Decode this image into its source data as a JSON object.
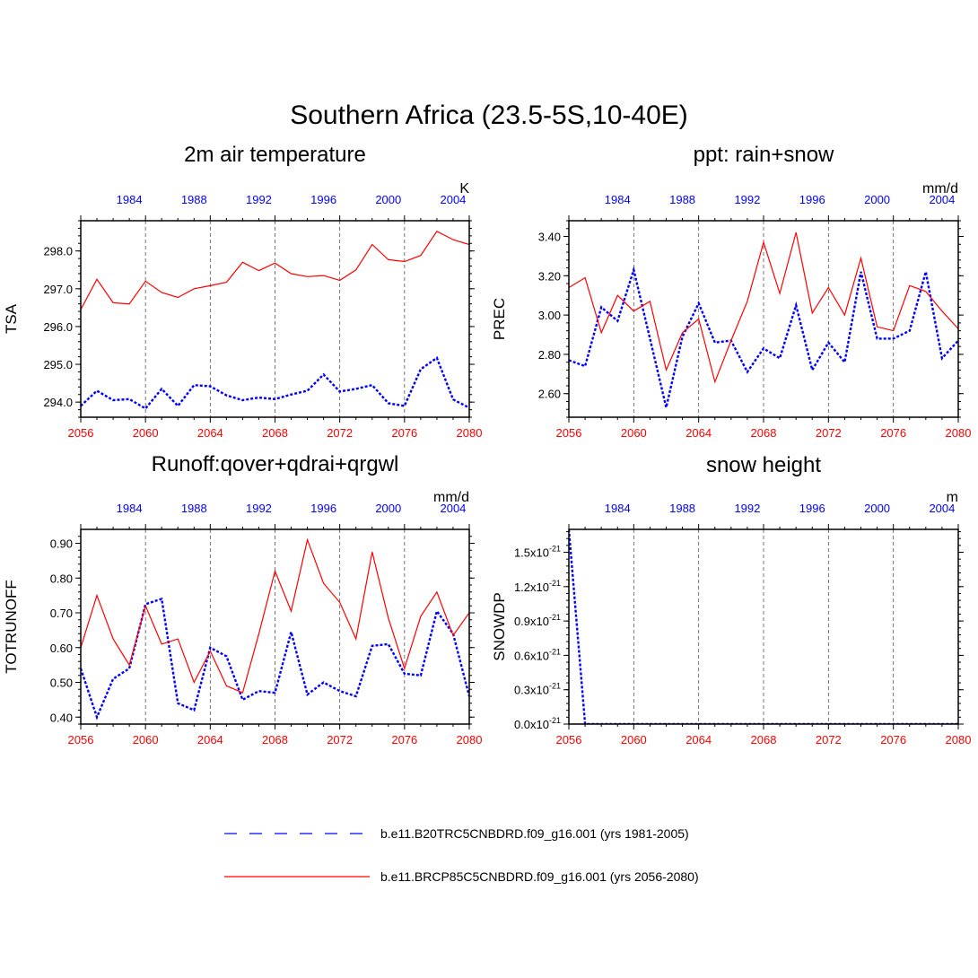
{
  "title": "Southern Africa (23.5-5S,10-40E)",
  "colors": {
    "future": "#ff0000",
    "historical": "#0000ff",
    "axis": "#000000",
    "grid": "#555555"
  },
  "legend": {
    "historical": "b.e11.B20TRC5CNBDRD.f09_g16.001 (yrs 1981-2005)",
    "future": "b.e11.BRCP85C5CNBDRD.f09_g16.001 (yrs 2056-2080)"
  },
  "chart_data": [
    {
      "type": "line",
      "title": "2m air temperature",
      "ylabel": "TSA",
      "units": "K",
      "x_future": [
        2056,
        2057,
        2058,
        2059,
        2060,
        2061,
        2062,
        2063,
        2064,
        2065,
        2066,
        2067,
        2068,
        2069,
        2070,
        2071,
        2072,
        2073,
        2074,
        2075,
        2076,
        2077,
        2078,
        2079,
        2080
      ],
      "x_historical": [
        1981,
        1982,
        1983,
        1984,
        1985,
        1986,
        1987,
        1988,
        1989,
        1990,
        1991,
        1992,
        1993,
        1994,
        1995,
        1996,
        1997,
        1998,
        1999,
        2000,
        2001,
        2002,
        2003,
        2004,
        2005
      ],
      "xlim": [
        2056,
        2080
      ],
      "ylim": [
        293.6,
        298.8
      ],
      "yticks": [
        294.0,
        295.0,
        296.0,
        297.0,
        298.0
      ],
      "ytick_labels": [
        "294.0",
        "295.0",
        "296.0",
        "297.0",
        "298.0"
      ],
      "bottom_ticks": [
        "2056",
        "2060",
        "2064",
        "2068",
        "2072",
        "2076",
        "2080"
      ],
      "top_ticks": [
        "1984",
        "1988",
        "1992",
        "1996",
        "2000",
        "2004"
      ],
      "series": [
        {
          "name": "b.e11.B20TRC5CNBDRD.f09_g16.001 (yrs 1981-2005)",
          "role": "historical",
          "values": [
            293.9,
            294.3,
            294.05,
            294.08,
            293.83,
            294.35,
            293.9,
            294.45,
            294.42,
            294.18,
            294.05,
            294.12,
            294.08,
            294.2,
            294.3,
            294.73,
            294.28,
            294.35,
            294.45,
            293.97,
            293.9,
            294.87,
            295.17,
            294.07,
            293.85
          ]
        },
        {
          "name": "b.e11.BRCP85C5CNBDRD.f09_g16.001 (yrs 2056-2080)",
          "role": "future",
          "values": [
            296.45,
            297.25,
            296.63,
            296.6,
            297.2,
            296.9,
            296.77,
            297.0,
            297.08,
            297.17,
            297.7,
            297.48,
            297.68,
            297.4,
            297.32,
            297.35,
            297.22,
            297.5,
            298.17,
            297.77,
            297.72,
            297.88,
            298.52,
            298.3,
            298.17
          ]
        }
      ]
    },
    {
      "type": "line",
      "title": "ppt: rain+snow",
      "ylabel": "PREC",
      "units": "mm/d",
      "x_future": [
        2056,
        2057,
        2058,
        2059,
        2060,
        2061,
        2062,
        2063,
        2064,
        2065,
        2066,
        2067,
        2068,
        2069,
        2070,
        2071,
        2072,
        2073,
        2074,
        2075,
        2076,
        2077,
        2078,
        2079,
        2080
      ],
      "x_historical": [
        1981,
        1982,
        1983,
        1984,
        1985,
        1986,
        1987,
        1988,
        1989,
        1990,
        1991,
        1992,
        1993,
        1994,
        1995,
        1996,
        1997,
        1998,
        1999,
        2000,
        2001,
        2002,
        2003,
        2004,
        2005
      ],
      "xlim": [
        2056,
        2080
      ],
      "ylim": [
        2.48,
        3.48
      ],
      "yticks": [
        2.6,
        2.8,
        3.0,
        3.2,
        3.4
      ],
      "ytick_labels": [
        "2.60",
        "2.80",
        "3.00",
        "3.20",
        "3.40"
      ],
      "bottom_ticks": [
        "2056",
        "2060",
        "2064",
        "2068",
        "2072",
        "2076",
        "2080"
      ],
      "top_ticks": [
        "1984",
        "1988",
        "1992",
        "1996",
        "2000",
        "2004"
      ],
      "series": [
        {
          "name": "b.e11.B20TRC5CNBDRD.f09_g16.001 (yrs 1981-2005)",
          "role": "historical",
          "values": [
            2.77,
            2.74,
            3.04,
            2.97,
            3.23,
            2.88,
            2.53,
            2.89,
            3.06,
            2.86,
            2.87,
            2.71,
            2.83,
            2.78,
            3.05,
            2.72,
            2.86,
            2.76,
            3.22,
            2.88,
            2.88,
            2.92,
            3.22,
            2.78,
            2.87
          ]
        },
        {
          "name": "b.e11.BRCP85C5CNBDRD.f09_g16.001 (yrs 2056-2080)",
          "role": "future",
          "values": [
            3.14,
            3.19,
            2.91,
            3.1,
            3.02,
            3.07,
            2.72,
            2.91,
            2.98,
            2.66,
            2.87,
            3.07,
            3.37,
            3.11,
            3.42,
            3.01,
            3.14,
            3.0,
            3.29,
            2.94,
            2.92,
            3.15,
            3.12,
            3.02,
            2.93
          ]
        }
      ]
    },
    {
      "type": "line",
      "title": "Runoff:qover+qdrai+qrgwl",
      "ylabel": "TOTRUNOFF",
      "units": "mm/d",
      "x_future": [
        2056,
        2057,
        2058,
        2059,
        2060,
        2061,
        2062,
        2063,
        2064,
        2065,
        2066,
        2067,
        2068,
        2069,
        2070,
        2071,
        2072,
        2073,
        2074,
        2075,
        2076,
        2077,
        2078,
        2079,
        2080
      ],
      "x_historical": [
        1981,
        1982,
        1983,
        1984,
        1985,
        1986,
        1987,
        1988,
        1989,
        1990,
        1991,
        1992,
        1993,
        1994,
        1995,
        1996,
        1997,
        1998,
        1999,
        2000,
        2001,
        2002,
        2003,
        2004,
        2005
      ],
      "xlim": [
        2056,
        2080
      ],
      "ylim": [
        0.38,
        0.94
      ],
      "yticks": [
        0.4,
        0.5,
        0.6,
        0.7,
        0.8,
        0.9
      ],
      "ytick_labels": [
        "0.40",
        "0.50",
        "0.60",
        "0.70",
        "0.80",
        "0.90"
      ],
      "bottom_ticks": [
        "2056",
        "2060",
        "2064",
        "2068",
        "2072",
        "2076",
        "2080"
      ],
      "top_ticks": [
        "1984",
        "1988",
        "1992",
        "1996",
        "2000",
        "2004"
      ],
      "series": [
        {
          "name": "b.e11.B20TRC5CNBDRD.f09_g16.001 (yrs 1981-2005)",
          "role": "historical",
          "values": [
            0.54,
            0.4,
            0.51,
            0.54,
            0.725,
            0.74,
            0.44,
            0.42,
            0.6,
            0.575,
            0.45,
            0.475,
            0.47,
            0.645,
            0.465,
            0.5,
            0.475,
            0.46,
            0.605,
            0.61,
            0.525,
            0.52,
            0.705,
            0.64,
            0.46
          ]
        },
        {
          "name": "b.e11.BRCP85C5CNBDRD.f09_g16.001 (yrs 2056-2080)",
          "role": "future",
          "values": [
            0.6,
            0.75,
            0.625,
            0.55,
            0.72,
            0.61,
            0.625,
            0.5,
            0.59,
            0.49,
            0.47,
            0.64,
            0.82,
            0.705,
            0.91,
            0.785,
            0.73,
            0.625,
            0.875,
            0.685,
            0.54,
            0.69,
            0.76,
            0.635,
            0.7
          ]
        }
      ]
    },
    {
      "type": "line",
      "title": "snow height",
      "ylabel": "SNOWDP",
      "units": "m",
      "x_future": [
        2056,
        2057,
        2058,
        2059,
        2060,
        2061,
        2062,
        2063,
        2064,
        2065,
        2066,
        2067,
        2068,
        2069,
        2070,
        2071,
        2072,
        2073,
        2074,
        2075,
        2076,
        2077,
        2078,
        2079,
        2080
      ],
      "x_historical": [
        1981,
        1982,
        1983,
        1984,
        1985,
        1986,
        1987,
        1988,
        1989,
        1990,
        1991,
        1992,
        1993,
        1994,
        1995,
        1996,
        1997,
        1998,
        1999,
        2000,
        2001,
        2002,
        2003,
        2004,
        2005
      ],
      "xlim": [
        2056,
        2080
      ],
      "ylim": [
        0.0,
        1.7e-21
      ],
      "yticks": [
        0.0,
        3e-22,
        6e-22,
        9e-22,
        1.2e-21,
        1.5e-21
      ],
      "ytick_mantissas": [
        "0.0",
        "0.3",
        "0.6",
        "0.9",
        "1.2",
        "1.5"
      ],
      "ytick_suffix": "x10",
      "ytick_exponent": "-21",
      "bottom_ticks": [
        "2056",
        "2060",
        "2064",
        "2068",
        "2072",
        "2076",
        "2080"
      ],
      "top_ticks": [
        "1984",
        "1988",
        "1992",
        "1996",
        "2000",
        "2004"
      ],
      "series": [
        {
          "name": "b.e11.B20TRC5CNBDRD.f09_g16.001 (yrs 1981-2005)",
          "role": "historical",
          "values": [
            1.7e-21,
            0,
            0,
            0,
            0,
            0,
            0,
            0,
            0,
            0,
            0,
            0,
            0,
            0,
            0,
            0,
            0,
            0,
            0,
            0,
            0,
            0,
            0,
            0,
            0
          ]
        },
        {
          "name": "b.e11.BRCP85C5CNBDRD.f09_g16.001 (yrs 2056-2080)",
          "role": "future",
          "values": [
            0,
            0,
            0,
            0,
            0,
            0,
            0,
            0,
            0,
            0,
            0,
            0,
            0,
            0,
            0,
            0,
            0,
            0,
            0,
            0,
            0,
            0,
            0,
            0,
            0
          ]
        }
      ]
    }
  ]
}
